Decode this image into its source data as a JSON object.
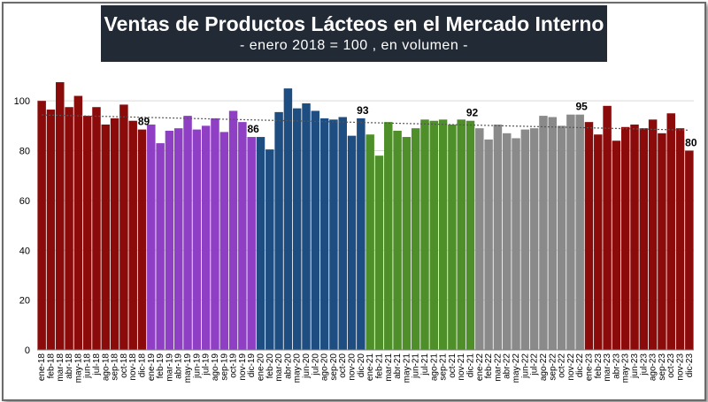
{
  "title": "Ventas de Productos Lácteos en el Mercado Interno",
  "subtitle": "- enero 2018 = 100 , en volumen -",
  "chart_data": {
    "type": "bar",
    "title": "Ventas de Productos Lácteos en el Mercado Interno",
    "subtitle": "- enero 2018 = 100 , en volumen -",
    "ylim": [
      0,
      110
    ],
    "yticks": [
      0,
      20,
      40,
      60,
      80,
      100
    ],
    "grid": true,
    "trendline": "linear, dotted",
    "categories": [
      "ene-18",
      "feb-18",
      "mar-18",
      "abr-18",
      "may-18",
      "jun-18",
      "jul-18",
      "ago-18",
      "sep-18",
      "oct-18",
      "nov-18",
      "dic-18",
      "ene-19",
      "feb-19",
      "mar-19",
      "abr-19",
      "may-19",
      "jun-19",
      "jul-19",
      "ago-19",
      "sep-19",
      "oct-19",
      "nov-19",
      "dic-19",
      "ene-20",
      "feb-20",
      "mar-20",
      "abr-20",
      "may-20",
      "jun-20",
      "jul-20",
      "ago-20",
      "sep-20",
      "oct-20",
      "nov-20",
      "dic-20",
      "ene-21",
      "feb-21",
      "mar-21",
      "abr-21",
      "may-21",
      "jun-21",
      "jul-21",
      "ago-21",
      "sep-21",
      "oct-21",
      "nov-21",
      "dic-21",
      "ene-22",
      "feb-22",
      "mar-22",
      "abr-22",
      "may-22",
      "jun-22",
      "jul-22",
      "ago-22",
      "sep-22",
      "oct-22",
      "nov-22",
      "dic-22",
      "ene-23",
      "feb-23",
      "mar-23",
      "abr-23",
      "may-23",
      "jun-23",
      "jul-23",
      "ago-23",
      "sep-23",
      "oct-23",
      "nov-23",
      "dic-23"
    ],
    "values": [
      100,
      96.5,
      107.5,
      97.5,
      102,
      94,
      97.5,
      90.5,
      93,
      98.5,
      92,
      88.5,
      90.5,
      83,
      88,
      89,
      94,
      88.5,
      90,
      93,
      87.5,
      96,
      91.5,
      85.5,
      85.5,
      80.5,
      95.5,
      105,
      97,
      99,
      96,
      93,
      92.5,
      93.5,
      86,
      93,
      86.5,
      78,
      91.5,
      88,
      85.5,
      89,
      92.5,
      92,
      92.5,
      90.5,
      92.5,
      92,
      89,
      84.5,
      90.5,
      87,
      85,
      88.5,
      89,
      94,
      93.5,
      90,
      94.5,
      94.5,
      91.5,
      86.5,
      98,
      84,
      89.5,
      90.5,
      89,
      92.5,
      87,
      95,
      89,
      80
    ],
    "year_colors": [
      "#8b0a0a",
      "#8e3fc3",
      "#1e4d82",
      "#4f8f29",
      "#8a8a8a",
      "#8b0a0a"
    ],
    "data_labels": [
      {
        "category": "dic-18",
        "text": "89"
      },
      {
        "category": "dic-19",
        "text": "86"
      },
      {
        "category": "dic-20",
        "text": "93"
      },
      {
        "category": "dic-21",
        "text": "92"
      },
      {
        "category": "dic-22",
        "text": "95"
      },
      {
        "category": "dic-23",
        "text": "80"
      }
    ]
  }
}
